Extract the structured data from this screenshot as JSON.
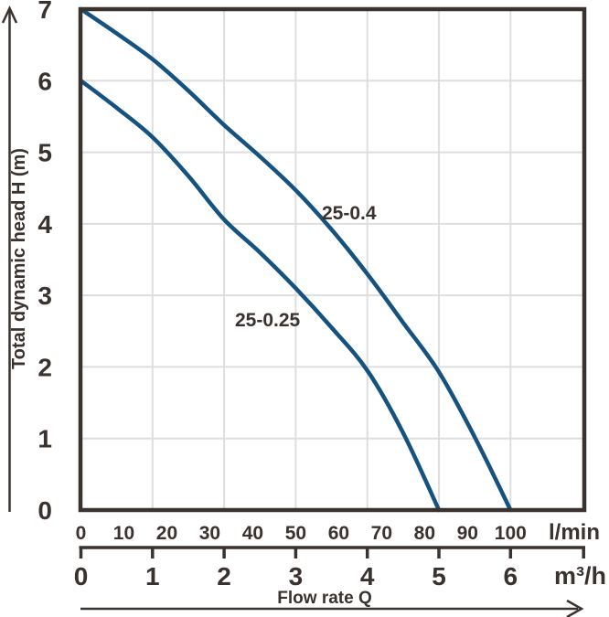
{
  "chart_data": {
    "type": "line",
    "title": "",
    "ylabel": "Total dynamic head H (m)",
    "xlabel": "Flow rate Q",
    "grid": true,
    "legend_position": "inline-curve-labels",
    "y_axis": {
      "unit": "m",
      "range": [
        0,
        7
      ],
      "ticks": [
        0,
        1,
        2,
        3,
        4,
        5,
        6,
        7
      ]
    },
    "x_axis_lmin": {
      "label": "l/min",
      "range": [
        0,
        100
      ],
      "ticks": [
        0,
        10,
        20,
        30,
        40,
        50,
        60,
        70,
        80,
        90,
        100
      ]
    },
    "x_axis_m3h": {
      "label": "m³/h",
      "range": [
        0,
        6
      ],
      "ticks": [
        0,
        1,
        2,
        3,
        4,
        5,
        6
      ]
    },
    "series": [
      {
        "name": "25-0.4",
        "points_q_m3h_vs_h_m": [
          [
            0,
            7
          ],
          [
            0.5,
            6.66
          ],
          [
            1,
            6.3
          ],
          [
            1.5,
            5.86
          ],
          [
            2,
            5.38
          ],
          [
            2.5,
            4.94
          ],
          [
            3,
            4.47
          ],
          [
            3.5,
            3.92
          ],
          [
            4,
            3.3
          ],
          [
            4.5,
            2.62
          ],
          [
            5,
            1.93
          ],
          [
            5.5,
            1.02
          ],
          [
            6,
            0
          ]
        ]
      },
      {
        "name": "25-0.25",
        "points_q_m3h_vs_h_m": [
          [
            0,
            6
          ],
          [
            0.5,
            5.62
          ],
          [
            1,
            5.21
          ],
          [
            1.5,
            4.67
          ],
          [
            2,
            4.06
          ],
          [
            2.5,
            3.6
          ],
          [
            3,
            3.1
          ],
          [
            3.5,
            2.55
          ],
          [
            4,
            1.95
          ],
          [
            4.5,
            1.08
          ],
          [
            5,
            0
          ]
        ]
      }
    ],
    "colors": {
      "curve": "#15527F",
      "axis_text": "#3A322F",
      "grid": "#DEDEDE",
      "background": "#FFFFFF"
    }
  }
}
